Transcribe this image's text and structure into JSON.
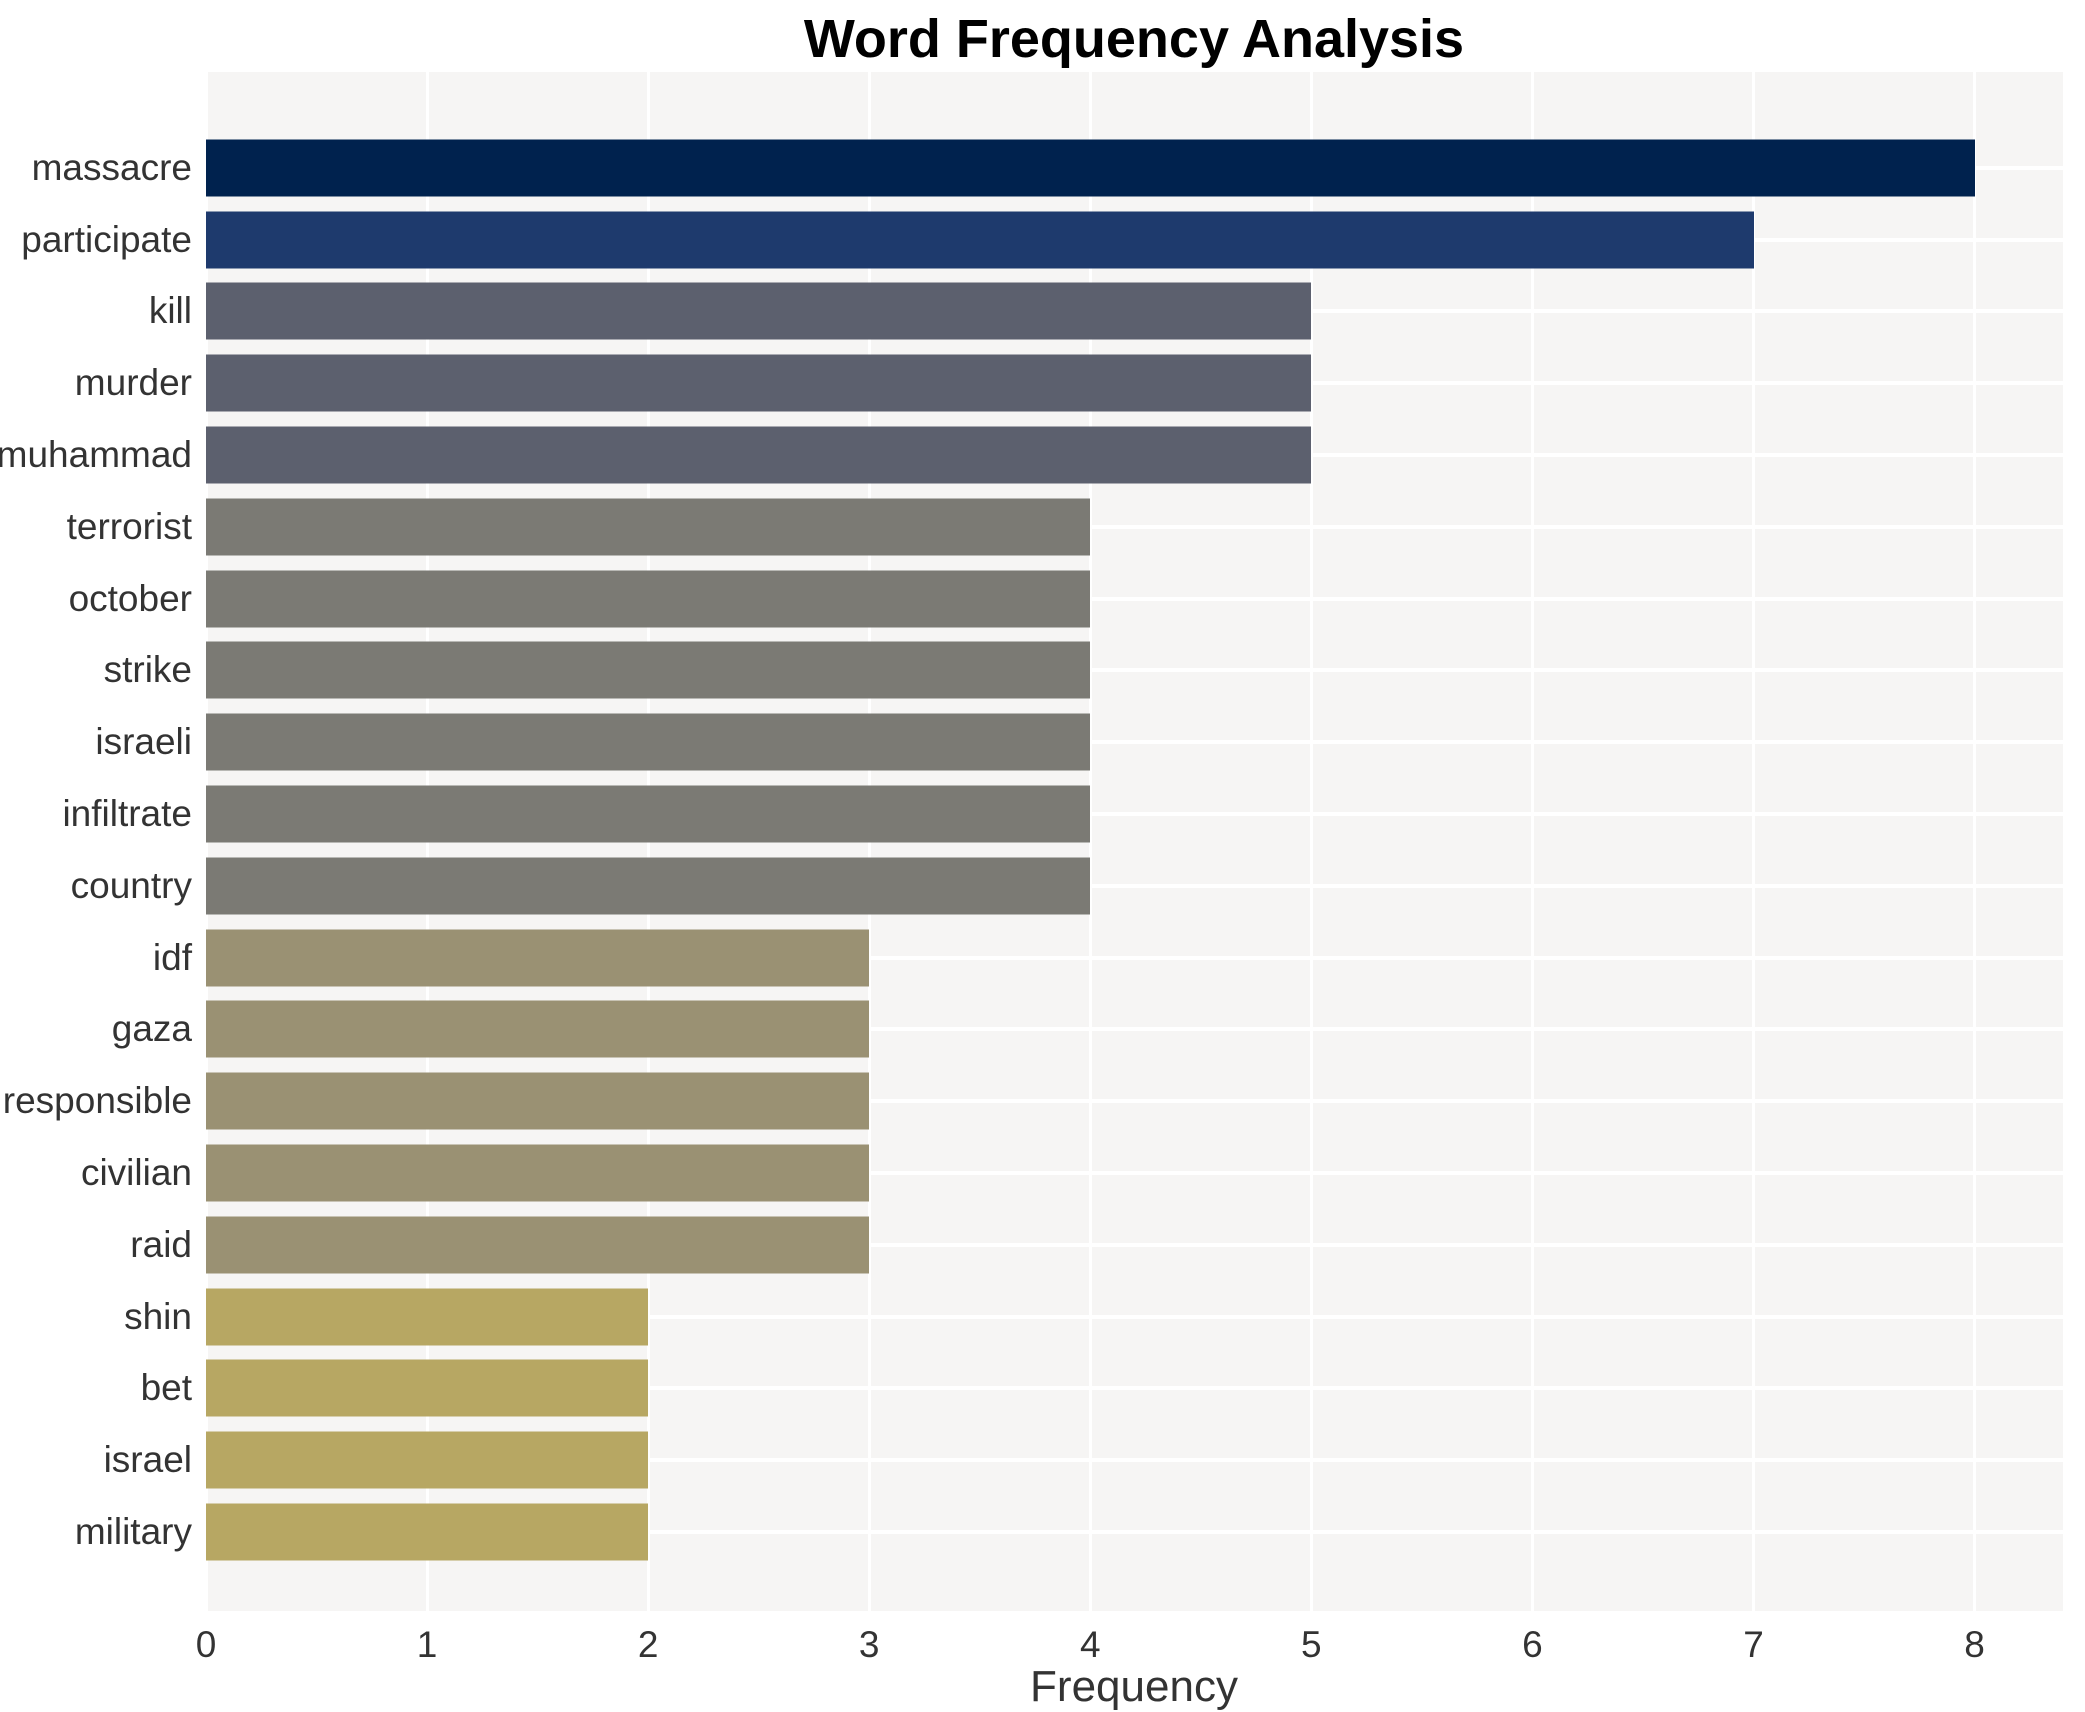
{
  "title": "Word Frequency Analysis",
  "colors": {
    "page_background": "#ffffff",
    "plot_background": "#f6f5f4",
    "gridline": "#ffffff",
    "title_text": "#000000",
    "axis_text": "#333333"
  },
  "chart_data": {
    "type": "bar",
    "orientation": "horizontal",
    "title": "Word Frequency Analysis",
    "xlabel": "Frequency",
    "ylabel": "",
    "categories": [
      "massacre",
      "participate",
      "kill",
      "murder",
      "muhammad",
      "terrorist",
      "october",
      "strike",
      "israeli",
      "infiltrate",
      "country",
      "idf",
      "gaza",
      "responsible",
      "civilian",
      "raid",
      "shin",
      "bet",
      "israel",
      "military"
    ],
    "values": [
      8,
      7,
      5,
      5,
      5,
      4,
      4,
      4,
      4,
      4,
      4,
      3,
      3,
      3,
      3,
      3,
      2,
      2,
      2,
      2
    ],
    "bar_colors": [
      "#00224e",
      "#1e3a6d",
      "#5c606e",
      "#5c606e",
      "#5c606e",
      "#7b7a74",
      "#7b7a74",
      "#7b7a74",
      "#7b7a74",
      "#7b7a74",
      "#7b7a74",
      "#9a9173",
      "#9a9173",
      "#9a9173",
      "#9a9173",
      "#9a9173",
      "#b7a763",
      "#b7a763",
      "#b7a763",
      "#b7a763"
    ],
    "x_ticks": [
      0,
      1,
      2,
      3,
      4,
      5,
      6,
      7,
      8
    ],
    "xlim": [
      0,
      8.4
    ],
    "grid": "white major gridlines (vertical at integer ticks, horizontal at category centers) on light gray plot background",
    "legend": false
  }
}
